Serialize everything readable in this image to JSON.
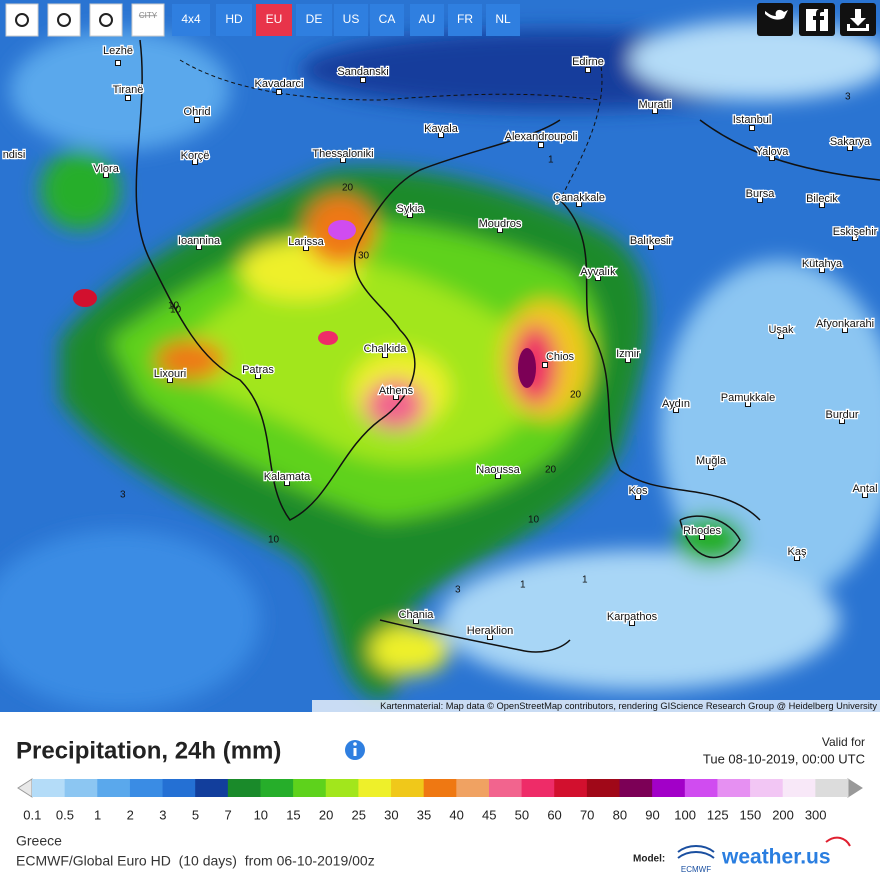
{
  "toolbar": {
    "city_button": "CITY",
    "buttons": [
      "4x4",
      "HD",
      "EU",
      "DE",
      "US",
      "CA",
      "AU",
      "FR",
      "NL"
    ],
    "active": "EU"
  },
  "map": {
    "places": [
      "Lezhë",
      "Tiranë",
      "Ohrid",
      "Kavadarci",
      "Sandanski",
      "Edirne",
      "Muratli",
      "Istanbul",
      "Korçë",
      "Thessaloniki",
      "Kavala",
      "Alexandroupoli",
      "Yalova",
      "Sakarya",
      "Vlora",
      "ndisi",
      "Bursa",
      "Bilecik",
      "Sykia",
      "Moudros",
      "Çanakkale",
      "Ioannina",
      "Larissa",
      "Balıkesir",
      "Eskişehir",
      "Kütahya",
      "Ayvalık",
      "Uşak",
      "Afyonkarahi",
      "Chalkida",
      "Chios",
      "Izmir",
      "Lixouri",
      "Patras",
      "Athens",
      "Aydın",
      "Pamukkale",
      "Burdur",
      "Muğla",
      "Kalamata",
      "Naoussa",
      "Kos",
      "Antal",
      "Rhodes",
      "Kaş",
      "Chania",
      "Karpathos",
      "Heraklion"
    ],
    "contour_labels": [
      "1",
      "3",
      "10",
      "20",
      "30",
      "10",
      "20",
      "3",
      "1",
      "10",
      "3",
      "1",
      "20",
      "10"
    ],
    "attribution": "Kartenmaterial: Map data © OpenStreetMap contributors, rendering GIScience Research Group @ Heidelberg University"
  },
  "legend": {
    "title": "Precipitation, 24h (mm)",
    "valid_label": "Valid for",
    "valid_time": "Tue 08-10-2019, 00:00 UTC",
    "scale": [
      0.1,
      0.5,
      1,
      2,
      3,
      5,
      7,
      10,
      15,
      20,
      25,
      30,
      35,
      40,
      45,
      50,
      60,
      70,
      80,
      90,
      100,
      125,
      150,
      200,
      300
    ],
    "colors": [
      "#b4dcf8",
      "#8cc6f2",
      "#5aa8ec",
      "#3a8ce4",
      "#2470d4",
      "#123e9c",
      "#1a8a2a",
      "#26ae2a",
      "#5ed21c",
      "#a2e61c",
      "#eef02a",
      "#f0c81a",
      "#ef7812",
      "#f0a262",
      "#f2648e",
      "#ee2c68",
      "#d2102e",
      "#a00818",
      "#7c0056",
      "#a200c8",
      "#d04cf0",
      "#e690f2",
      "#f2c6f4",
      "#f8e8f8",
      "#dcdcdc"
    ],
    "region": "Greece",
    "model_run": "ECMWF/Global Euro HD  (10 days)  from 06-10-2019/00z",
    "model_label": "Model:",
    "model_logo": "ECMWF",
    "brand": "weather.us"
  }
}
